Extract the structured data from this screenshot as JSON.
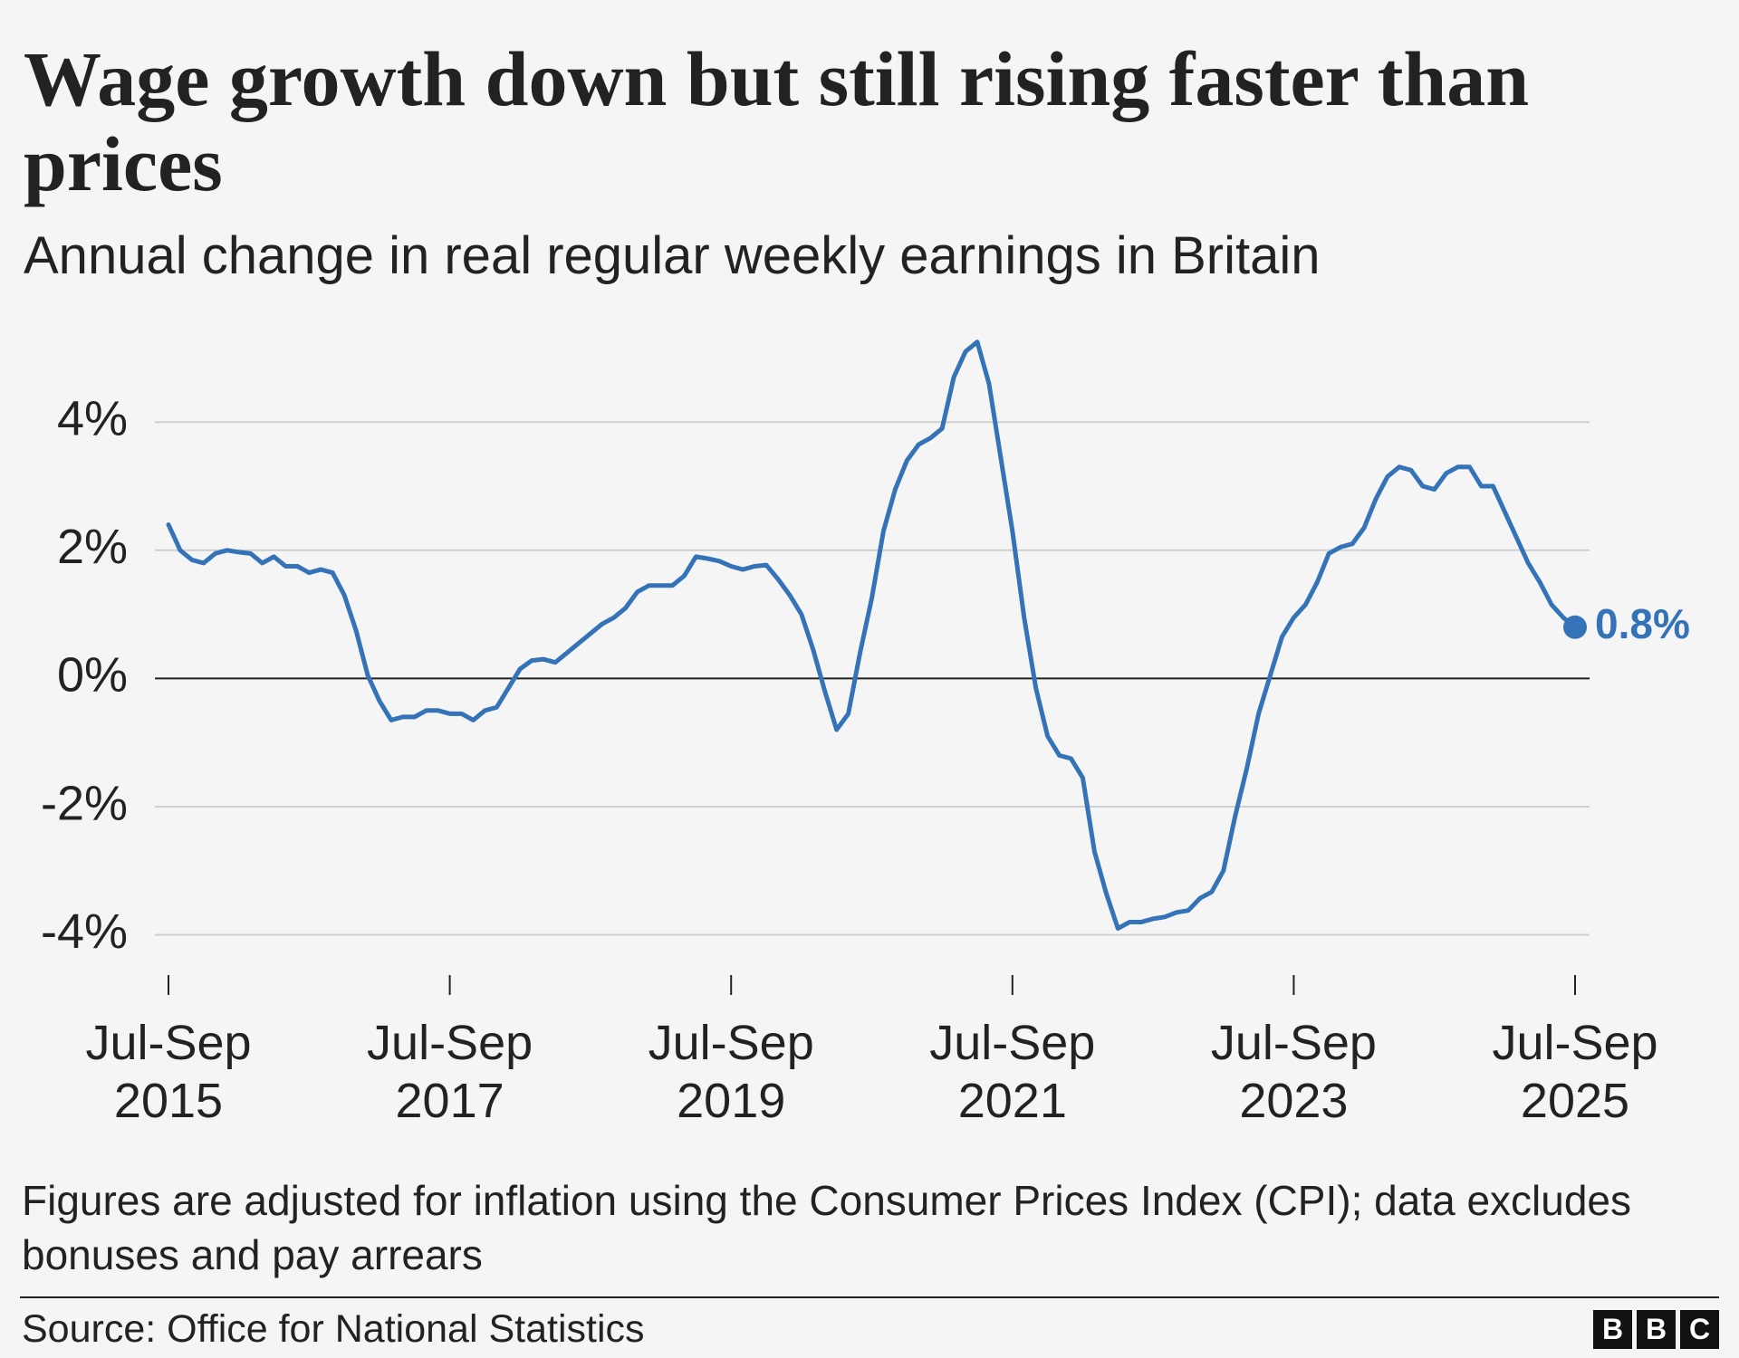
{
  "chart_data": {
    "type": "line",
    "title": "Wage growth down but still rising faster than prices",
    "subtitle": "Annual change in real regular weekly earnings in Britain",
    "note": "Figures are adjusted for inflation using the Consumer Prices Index (CPI); data excludes bonuses and pay arrears",
    "source": "Source: Office for National Statistics",
    "logo": [
      "B",
      "B",
      "C"
    ],
    "color": "#3473b7",
    "grid": true,
    "ylim": [
      -4.5,
      5.5
    ],
    "yticks": [
      {
        "value": -4,
        "label": "-4%"
      },
      {
        "value": -2,
        "label": "-2%"
      },
      {
        "value": 0,
        "label": "0%"
      },
      {
        "value": 2,
        "label": "2%"
      },
      {
        "value": 4,
        "label": "4%"
      }
    ],
    "categories": [
      "Jul-Sep 2015",
      null,
      null,
      null,
      null,
      null,
      null,
      null,
      null,
      null,
      null,
      null,
      null,
      null,
      null,
      null,
      null,
      null,
      null,
      null,
      null,
      null,
      null,
      null,
      "Jul-Sep 2017",
      null,
      null,
      null,
      null,
      null,
      null,
      null,
      null,
      null,
      null,
      null,
      null,
      null,
      null,
      null,
      null,
      null,
      null,
      null,
      null,
      null,
      null,
      null,
      "Jul-Sep 2019",
      null,
      null,
      null,
      null,
      null,
      null,
      null,
      null,
      null,
      null,
      null,
      null,
      null,
      null,
      null,
      null,
      null,
      null,
      null,
      null,
      null,
      null,
      null,
      "Jul-Sep 2021",
      null,
      null,
      null,
      null,
      null,
      null,
      null,
      null,
      null,
      null,
      null,
      null,
      null,
      null,
      null,
      null,
      null,
      null,
      null,
      null,
      null,
      null,
      null,
      "Jul-Sep 2023",
      null,
      null,
      null,
      null,
      null,
      null,
      null,
      null,
      null,
      null,
      null,
      null,
      null,
      null,
      null,
      null,
      null,
      null,
      null,
      null,
      null,
      null,
      null,
      "Jul-Sep 2025"
    ],
    "values": [
      2.4,
      2.0,
      1.85,
      1.8,
      1.95,
      2.0,
      1.97,
      1.95,
      1.8,
      1.9,
      1.75,
      1.75,
      1.65,
      1.7,
      1.65,
      1.3,
      0.75,
      0.05,
      -0.35,
      -0.65,
      -0.6,
      -0.6,
      -0.5,
      -0.5,
      -0.55,
      -0.55,
      -0.65,
      -0.5,
      -0.45,
      -0.15,
      0.15,
      0.28,
      0.3,
      0.25,
      0.4,
      0.55,
      0.7,
      0.85,
      0.95,
      1.1,
      1.35,
      1.45,
      1.45,
      1.45,
      1.6,
      1.9,
      1.87,
      1.83,
      1.75,
      1.7,
      1.75,
      1.77,
      1.55,
      1.3,
      1.0,
      0.45,
      -0.2,
      -0.8,
      -0.55,
      0.4,
      1.25,
      2.3,
      2.95,
      3.4,
      3.65,
      3.75,
      3.9,
      4.7,
      5.1,
      5.25,
      4.6,
      3.45,
      2.3,
      0.95,
      -0.15,
      -0.9,
      -1.2,
      -1.25,
      -1.55,
      -2.7,
      -3.35,
      -3.9,
      -3.8,
      -3.8,
      -3.75,
      -3.72,
      -3.65,
      -3.62,
      -3.43,
      -3.33,
      -3.0,
      -2.15,
      -1.4,
      -0.55,
      0.05,
      0.65,
      0.95,
      1.15,
      1.5,
      1.95,
      2.05,
      2.1,
      2.35,
      2.8,
      3.15,
      3.3,
      3.25,
      3.0,
      2.95,
      3.2,
      3.3,
      3.3,
      3.0,
      3.0,
      2.6,
      2.2,
      1.8,
      1.5,
      1.15,
      0.95,
      0.8
    ],
    "value_labels": [
      null,
      null,
      null,
      null,
      null,
      null,
      null,
      null,
      null,
      null,
      null,
      null,
      null,
      null,
      null,
      null,
      null,
      null,
      null,
      null,
      null,
      null,
      null,
      null,
      null,
      null,
      null,
      null,
      null,
      null,
      null,
      null,
      null,
      null,
      null,
      null,
      null,
      null,
      null,
      null,
      null,
      null,
      null,
      null,
      null,
      null,
      null,
      null,
      null,
      null,
      null,
      null,
      null,
      null,
      null,
      null,
      null,
      null,
      null,
      null,
      null,
      null,
      null,
      null,
      null,
      null,
      null,
      null,
      null,
      null,
      null,
      null,
      null,
      null,
      null,
      null,
      null,
      null,
      null,
      null,
      null,
      null,
      null,
      null,
      null,
      null,
      null,
      null,
      null,
      null,
      null,
      null,
      null,
      null,
      null,
      null,
      null,
      null,
      null,
      null,
      null,
      null,
      null,
      null,
      null,
      null,
      null,
      null,
      null,
      null,
      null,
      null,
      null,
      null,
      null,
      null,
      null,
      null,
      null,
      null,
      "0.8%"
    ]
  }
}
